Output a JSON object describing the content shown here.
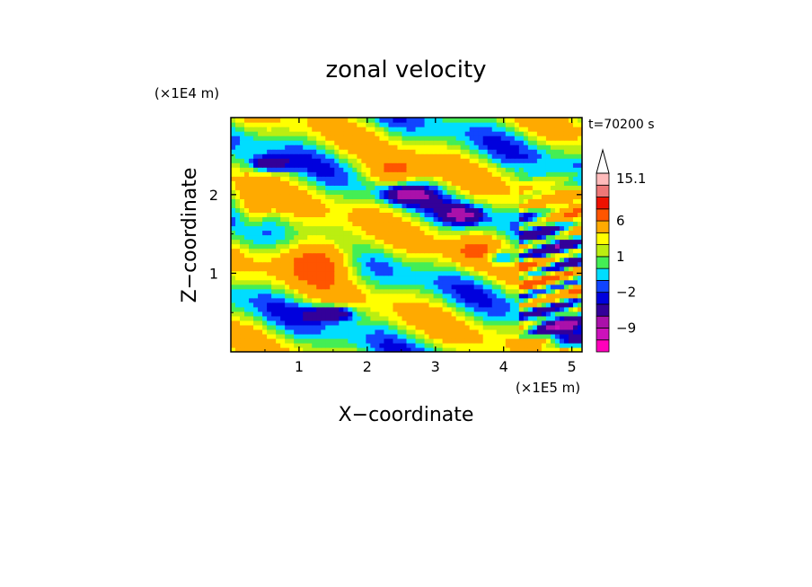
{
  "chart_data": {
    "type": "heatmap",
    "title": "zonal velocity",
    "xlabel": "X−coordinate",
    "ylabel": "Z−coordinate",
    "x_unit": "(×1E5 m)",
    "y_unit": "(×1E4 m)",
    "time_label": "t=70200 s",
    "xlim": [
      0,
      5.15
    ],
    "ylim": [
      0,
      2.98
    ],
    "x_ticks": [
      1,
      2,
      3,
      4,
      5
    ],
    "x_tick_labels": [
      "1",
      "2",
      "3",
      "4",
      "5"
    ],
    "y_ticks": [
      1,
      2
    ],
    "y_tick_labels": [
      "1",
      "2"
    ],
    "colorbar": {
      "levels": [
        -15,
        -12,
        -9,
        -6,
        -3,
        -2,
        -1,
        0,
        1,
        2,
        3,
        6,
        9,
        12,
        15.1
      ],
      "colors": [
        "#ff00bb",
        "#cc11bb",
        "#aa11aa",
        "#330099",
        "#0000dd",
        "#1144ff",
        "#00ddff",
        "#44ee55",
        "#bbee11",
        "#ffff00",
        "#ffaa00",
        "#ff5500",
        "#ee1100",
        "#ee7777",
        "#ffbbbb"
      ],
      "extend_top_color": "#ffffff",
      "labels": [
        {
          "value": 15.1,
          "text": "15.1"
        },
        {
          "value": 6,
          "text": "6"
        },
        {
          "value": 1,
          "text": "1"
        },
        {
          "value": -2,
          "text": "−2"
        },
        {
          "value": -9,
          "text": "−9"
        }
      ]
    },
    "features": [
      {
        "kind": "max",
        "x": 1.35,
        "z": 1.2,
        "amplitude": 6.5,
        "sx": 0.55,
        "sz": 0.28
      },
      {
        "kind": "max",
        "x": 2.4,
        "z": 2.3,
        "amplitude": 5.5,
        "sx": 0.4,
        "sz": 0.18
      },
      {
        "kind": "max",
        "x": 3.6,
        "z": 1.3,
        "amplitude": 4.5,
        "sx": 0.35,
        "sz": 0.2
      },
      {
        "kind": "max",
        "x": 0.3,
        "z": 1.8,
        "amplitude": 4.5,
        "sx": 0.25,
        "sz": 0.25
      },
      {
        "kind": "min",
        "x": 1.5,
        "z": 0.5,
        "amplitude": -7,
        "sx": 0.35,
        "sz": 0.1
      },
      {
        "kind": "min",
        "x": 2.6,
        "z": 2.0,
        "amplitude": -7,
        "sx": 0.35,
        "sz": 0.11
      },
      {
        "kind": "min",
        "x": 3.4,
        "z": 1.75,
        "amplitude": -7,
        "sx": 0.28,
        "sz": 0.11
      },
      {
        "kind": "min",
        "x": 3.95,
        "z": 1.2,
        "amplitude": -7,
        "sx": 0.25,
        "sz": 0.1
      },
      {
        "kind": "min",
        "x": 0.55,
        "z": 2.4,
        "amplitude": -6,
        "sx": 0.3,
        "sz": 0.1
      },
      {
        "kind": "min",
        "x": 4.8,
        "z": 0.3,
        "amplitude": -6,
        "sx": 0.3,
        "sz": 0.15
      }
    ]
  }
}
